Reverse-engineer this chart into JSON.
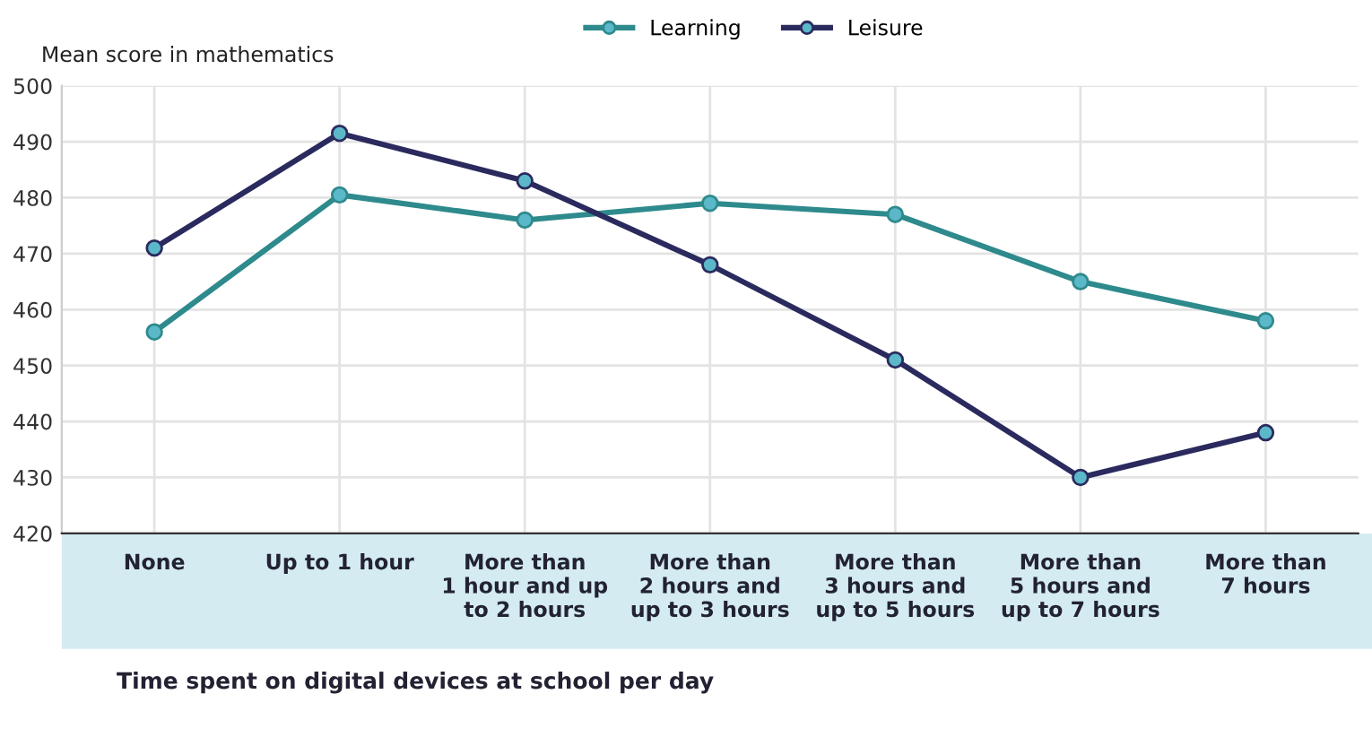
{
  "chart_data": {
    "type": "line",
    "ylabel": "Mean score in mathematics",
    "xlabel": "Time spent on digital devices at school per day",
    "categories": [
      "None",
      "Up to 1 hour",
      "More than\n1 hour and up\nto 2 hours",
      "More than\n2 hours and\nup to 3 hours",
      "More than\n3 hours and\nup to 5 hours",
      "More than\n5 hours and\nup to 7 hours",
      "More than\n7 hours"
    ],
    "series": [
      {
        "name": "Learning",
        "color": "#2e8a8c",
        "values": [
          456,
          480.5,
          476,
          479,
          477,
          465,
          458
        ]
      },
      {
        "name": "Leisure",
        "color": "#2a2a5e",
        "values": [
          471,
          491.5,
          483,
          468,
          451,
          430,
          438
        ]
      }
    ],
    "ylim": [
      420,
      500
    ],
    "yticks": [
      420,
      430,
      440,
      450,
      460,
      470,
      480,
      490,
      500
    ],
    "grid": true,
    "legend": "top",
    "marker": "circle",
    "line_style": "solid"
  }
}
